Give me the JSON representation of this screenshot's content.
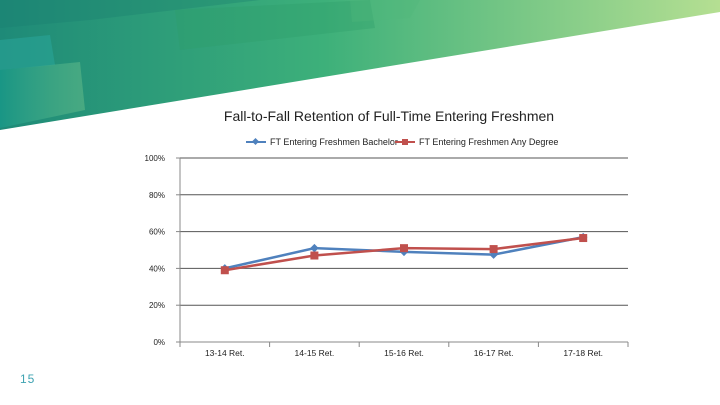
{
  "slide": {
    "number": "15"
  },
  "colors": {
    "banner_dark": "#1e8a78",
    "banner_mid": "#3db07a",
    "banner_light": "#a7d88a",
    "series_blue": "#4f81bd",
    "series_red": "#c0504d",
    "slide_number": "#3fa3b2"
  },
  "chart_data": {
    "type": "line",
    "title": "Fall-to-Fall Retention of Full-Time Entering Freshmen",
    "categories": [
      "13-14 Ret.",
      "14-15 Ret.",
      "15-16 Ret.",
      "16-17 Ret.",
      "17-18 Ret."
    ],
    "series": [
      {
        "name": "FT Entering Freshmen Bachelor",
        "color": "#4f81bd",
        "marker": "diamond",
        "values": [
          40,
          51,
          49,
          47.5,
          57
        ]
      },
      {
        "name": "FT Entering Freshmen Any Degree",
        "color": "#c0504d",
        "marker": "square",
        "values": [
          39,
          47,
          51,
          50.5,
          56.5
        ]
      }
    ],
    "ylim": [
      0,
      100
    ],
    "yticks": [
      "0%",
      "20%",
      "40%",
      "60%",
      "80%",
      "100%"
    ],
    "ytick_values": [
      0,
      20,
      40,
      60,
      80,
      100
    ],
    "grid": true,
    "legend_position": "top",
    "xlabel": "",
    "ylabel": ""
  }
}
